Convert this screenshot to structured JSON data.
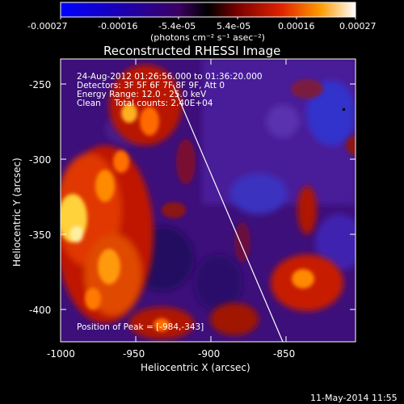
{
  "colorbar": {
    "tick_labels": [
      "-0.00027",
      "-0.00016",
      "-5.4e-05",
      "5.4e-05",
      "0.00016",
      "0.00027"
    ],
    "units_label": "(photons cm⁻² s⁻¹ asec⁻²)"
  },
  "image_title": "Reconstructed RHESSI Image",
  "info": {
    "time_range": "24-Aug-2012 01:26:56.000 to 01:36:20.000",
    "detectors": "Detectors: 3F 5F 6F 7F 8F 9F, Att 0",
    "energy_range": "Energy Range: 12.0 - 25.0 keV",
    "algorithm": "Clean     Total counts: 2.40E+04"
  },
  "peak_position": "Position of Peak = [-984,-343]",
  "x_axis": {
    "label": "Heliocentric X (arcsec)",
    "ticks": [
      "-1000",
      "-950",
      "-900",
      "-850"
    ]
  },
  "y_axis": {
    "label": "Heliocentric Y (arcsec)",
    "ticks": [
      "-250",
      "-300",
      "-350",
      "-400"
    ]
  },
  "footer_timestamp": "11-May-2014 11:55"
}
